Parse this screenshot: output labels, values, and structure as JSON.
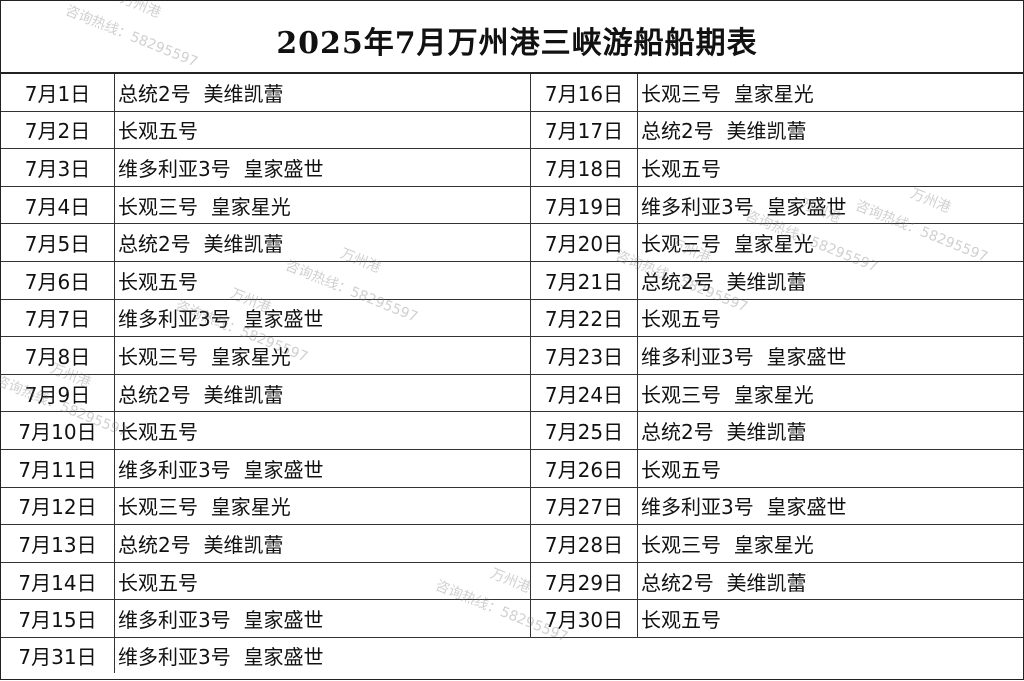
{
  "title": "2025年7月万州港三峡游船船期表",
  "watermark": {
    "hotline": "咨询热线：58295597",
    "port": "万州港"
  },
  "left": [
    {
      "date": "7月1日",
      "ships": "总统2号  美维凯蕾"
    },
    {
      "date": "7月2日",
      "ships": "长观五号"
    },
    {
      "date": "7月3日",
      "ships": "维多利亚3号  皇家盛世"
    },
    {
      "date": "7月4日",
      "ships": "长观三号  皇家星光"
    },
    {
      "date": "7月5日",
      "ships": "总统2号  美维凯蕾"
    },
    {
      "date": "7月6日",
      "ships": "长观五号"
    },
    {
      "date": "7月7日",
      "ships": "维多利亚3号  皇家盛世"
    },
    {
      "date": "7月8日",
      "ships": "长观三号  皇家星光"
    },
    {
      "date": "7月9日",
      "ships": "总统2号  美维凯蕾"
    },
    {
      "date": "7月10日",
      "ships": "长观五号"
    },
    {
      "date": "7月11日",
      "ships": "维多利亚3号  皇家盛世"
    },
    {
      "date": "7月12日",
      "ships": "长观三号  皇家星光"
    },
    {
      "date": "7月13日",
      "ships": "总统2号  美维凯蕾"
    },
    {
      "date": "7月14日",
      "ships": "长观五号"
    },
    {
      "date": "7月15日",
      "ships": "维多利亚3号  皇家盛世"
    }
  ],
  "right": [
    {
      "date": "7月16日",
      "ships": "长观三号  皇家星光"
    },
    {
      "date": "7月17日",
      "ships": "总统2号  美维凯蕾"
    },
    {
      "date": "7月18日",
      "ships": "长观五号"
    },
    {
      "date": "7月19日",
      "ships": "维多利亚3号  皇家盛世"
    },
    {
      "date": "7月20日",
      "ships": "长观三号  皇家星光"
    },
    {
      "date": "7月21日",
      "ships": "总统2号  美维凯蕾"
    },
    {
      "date": "7月22日",
      "ships": "长观五号"
    },
    {
      "date": "7月23日",
      "ships": "维多利亚3号  皇家盛世"
    },
    {
      "date": "7月24日",
      "ships": "长观三号  皇家星光"
    },
    {
      "date": "7月25日",
      "ships": "总统2号  美维凯蕾"
    },
    {
      "date": "7月26日",
      "ships": "长观五号"
    },
    {
      "date": "7月27日",
      "ships": "维多利亚3号  皇家盛世"
    },
    {
      "date": "7月28日",
      "ships": "长观三号  皇家星光"
    },
    {
      "date": "7月29日",
      "ships": "总统2号  美维凯蕾"
    },
    {
      "date": "7月30日",
      "ships": "长观五号"
    }
  ],
  "last": {
    "date": "7月31日",
    "ships": "维多利亚3号  皇家盛世"
  }
}
